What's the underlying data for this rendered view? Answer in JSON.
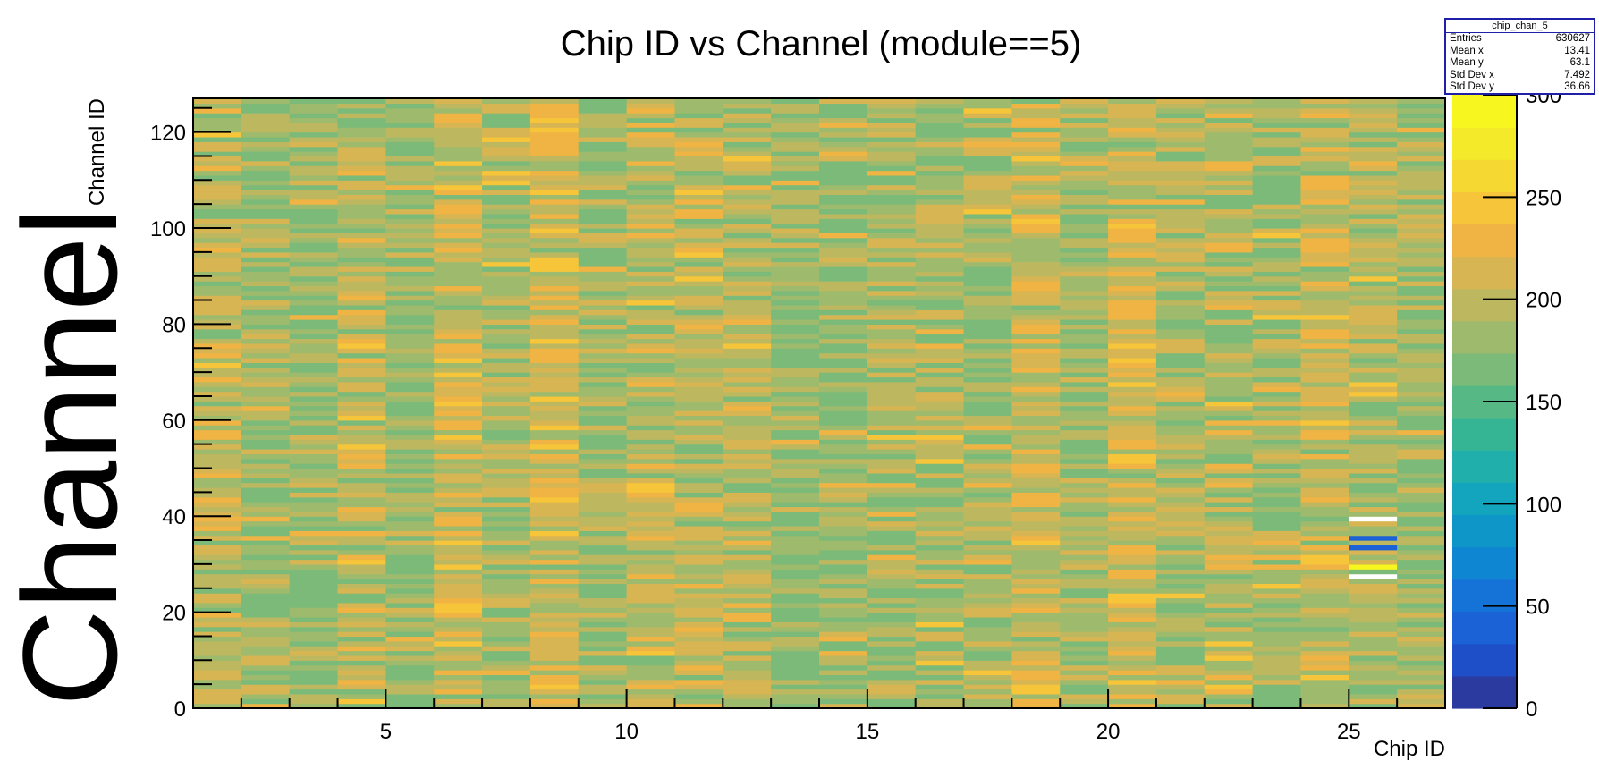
{
  "chart_data": {
    "type": "heatmap",
    "title": "Chip ID vs Channel (module==5)",
    "xlabel": "Chip ID",
    "ylabel": "Channel ID",
    "big_label": "Channel",
    "xlim": [
      1,
      27
    ],
    "ylim": [
      0,
      127
    ],
    "x_ticks": [
      5,
      10,
      15,
      20,
      25
    ],
    "y_ticks": [
      0,
      20,
      40,
      60,
      80,
      100,
      120
    ],
    "colorbar": {
      "min": 0,
      "max": 300,
      "ticks": [
        0,
        50,
        100,
        150,
        200,
        250,
        300
      ],
      "palette": [
        "#2b3a9e",
        "#1f4fc8",
        "#1a62d6",
        "#1572d6",
        "#0e86d2",
        "#0f96c8",
        "#13a5be",
        "#20afaa",
        "#36b595",
        "#56b985",
        "#7cba79",
        "#9eba6c",
        "#bdb85f",
        "#d8b553",
        "#efb443",
        "#f7c53a",
        "#f5d832",
        "#f4ea2a",
        "#f7f71f"
      ]
    },
    "cells_summary": {
      "bins_x": 26,
      "bins_y": 127,
      "typical_range": [
        160,
        250
      ],
      "anomalies": [
        {
          "chip": 25,
          "channel": 39,
          "value": 0
        },
        {
          "chip": 25,
          "channel": 35,
          "value": 40
        },
        {
          "chip": 25,
          "channel": 33,
          "value": 40
        },
        {
          "chip": 25,
          "channel": 29,
          "value": 285
        },
        {
          "chip": 25,
          "channel": 27,
          "value": 0
        }
      ]
    },
    "stats": {
      "name": "chip_chan_5",
      "entries": "630627",
      "mean_x": "13.41",
      "mean_y": "63.1",
      "std_x": "7.492",
      "std_y": "36.66"
    }
  },
  "stats_labels": {
    "entries": "Entries",
    "mean_x": "Mean x",
    "mean_y": "Mean y",
    "std_x": "Std Dev x",
    "std_y": "Std Dev y"
  }
}
